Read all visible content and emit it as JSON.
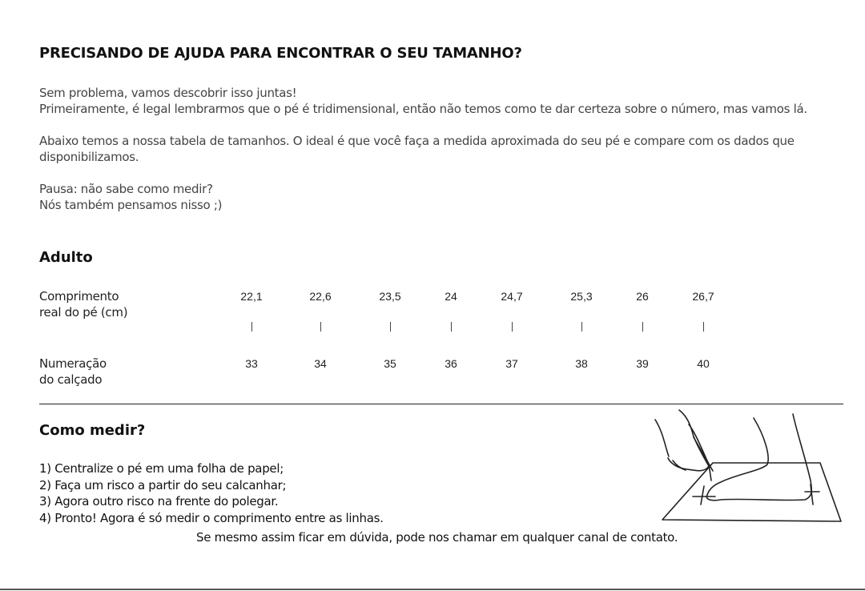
{
  "title": "PRECISANDO DE AJUDA PARA ENCONTRAR O SEU TAMANHO?",
  "intro": [
    "Sem problema, vamos descobrir isso juntas!",
    "Primeiramente, é legal lembrarmos que o pé é tridimensional, então não temos como te dar certeza sobre o número, mas vamos lá."
  ],
  "table_intro": [
    "Abaixo temos a nossa tabela de tamanhos. O ideal é que você faça a medida aproximada do seu pé e compare com os dados que",
    "disponibilizamos."
  ],
  "pause": [
    "Pausa: não sabe como medir?",
    "Nós também pensamos nisso ;)"
  ],
  "section_adult": "Adulto",
  "size_table": {
    "length_label": [
      "Comprimento",
      "real do pé (cm)"
    ],
    "size_label": [
      "Numeração",
      "do calçado"
    ],
    "lengths": [
      "22,1",
      "22,6",
      "23,5",
      "24",
      "24,7",
      "25,3",
      "26",
      "26,7"
    ],
    "sizes": [
      "33",
      "34",
      "35",
      "36",
      "37",
      "38",
      "39",
      "40"
    ]
  },
  "section_how": "Como medir?",
  "steps": [
    "1) Centralize o pé em uma folha de papel;",
    "2) Faça um risco a partir do seu calcanhar;",
    "3) Agora outro risco na frente do polegar.",
    "4) Pronto! Agora é só medir o comprimento entre as linhas."
  ],
  "footer_note": "Se mesmo assim ficar em dúvida, pode nos chamar em qualquer canal de contato."
}
